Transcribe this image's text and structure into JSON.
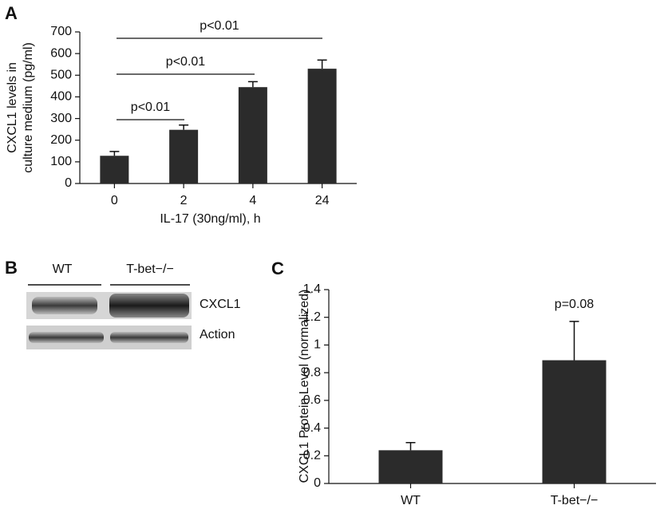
{
  "chart_data": [
    {
      "type": "bar",
      "panel_label": "A",
      "y_label": [
        "CXCL1 levels in",
        "culture medium (pg/ml)"
      ],
      "x_label": "IL-17 (30ng/ml), h",
      "categories": [
        "0",
        "2",
        "4",
        "24"
      ],
      "values": [
        128,
        248,
        445,
        530
      ],
      "error": [
        20,
        22,
        25,
        40
      ],
      "color": "#2b2b2b",
      "ylim": [
        0,
        700
      ],
      "yticks": [
        0,
        100,
        200,
        300,
        400,
        500,
        600,
        700
      ],
      "annotations": [
        "p<0.01",
        "p<0.01",
        "p<0.01"
      ]
    },
    {
      "type": "bar",
      "panel_label": "C",
      "y_label": [
        "CXCL1 Protein Level (normalized)"
      ],
      "categories": [
        "WT",
        "T-bet−/−"
      ],
      "values": [
        0.24,
        0.89
      ],
      "error": [
        0.055,
        0.28
      ],
      "color": "#2b2b2b",
      "ylim": [
        0,
        1.4
      ],
      "yticks": [
        0,
        0.2,
        0.4,
        0.6,
        0.8,
        1,
        1.2,
        1.4
      ],
      "annotations": [
        "p=0.08"
      ]
    }
  ],
  "blot": {
    "panel_label": "B",
    "lanes": [
      "WT",
      "T-bet−/−"
    ],
    "bands": [
      "CXCL1",
      "Action"
    ]
  }
}
